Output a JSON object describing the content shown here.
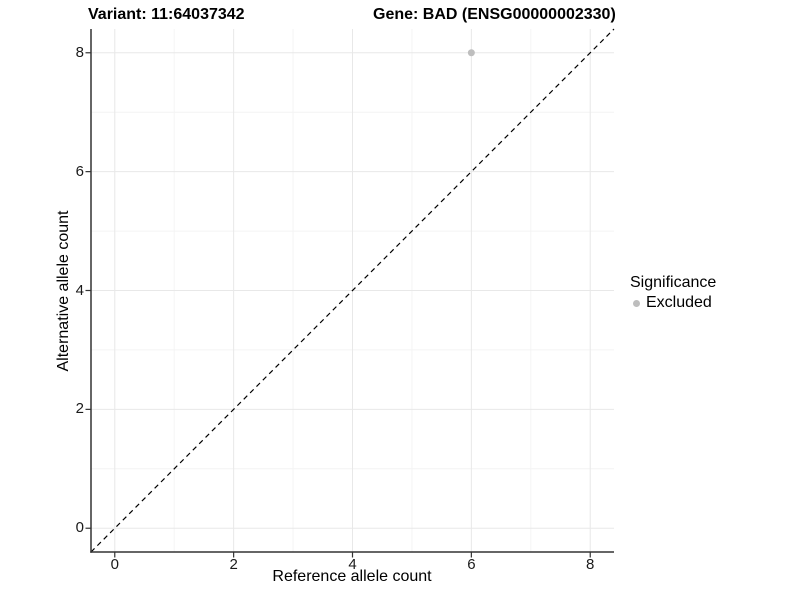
{
  "header": {
    "variant_title": "Variant: 11:64037342",
    "gene_title": "Gene: BAD (ENSG00000002330)"
  },
  "chart_data": {
    "type": "scatter",
    "title": "Variant: 11:64037342   Gene: BAD (ENSG00000002330)",
    "xlabel": "Reference allele count",
    "ylabel": "Alternative allele count",
    "xlim": [
      -0.4,
      8.4
    ],
    "ylim": [
      -0.4,
      8.4
    ],
    "xticks": [
      0,
      2,
      4,
      6,
      8
    ],
    "yticks": [
      0,
      2,
      4,
      6,
      8
    ],
    "xticks_minor": [
      1,
      3,
      5,
      7
    ],
    "yticks_minor": [
      1,
      3,
      5,
      7
    ],
    "grid": "major and minor gridlines on white panel",
    "series": [
      {
        "name": "Excluded",
        "marker": "circle",
        "color": "#bebebe",
        "points": [
          {
            "x": 6,
            "y": 8
          }
        ]
      }
    ],
    "reference_line": {
      "description": "identity line y = x",
      "slope": 1,
      "intercept": 0,
      "style": "dashed",
      "color": "#000000"
    },
    "legend": {
      "title": "Significance",
      "position": "right",
      "entries": [
        {
          "label": "Excluded",
          "color": "#bebebe"
        }
      ]
    },
    "colors": {
      "grid_major": "#e8e8e8",
      "grid_minor": "#f4f4f4",
      "axis_line": "#333333",
      "tick_mark": "#333333",
      "tick_label": "#1a1a1a",
      "point": "#bebebe",
      "background": "#ffffff"
    }
  }
}
